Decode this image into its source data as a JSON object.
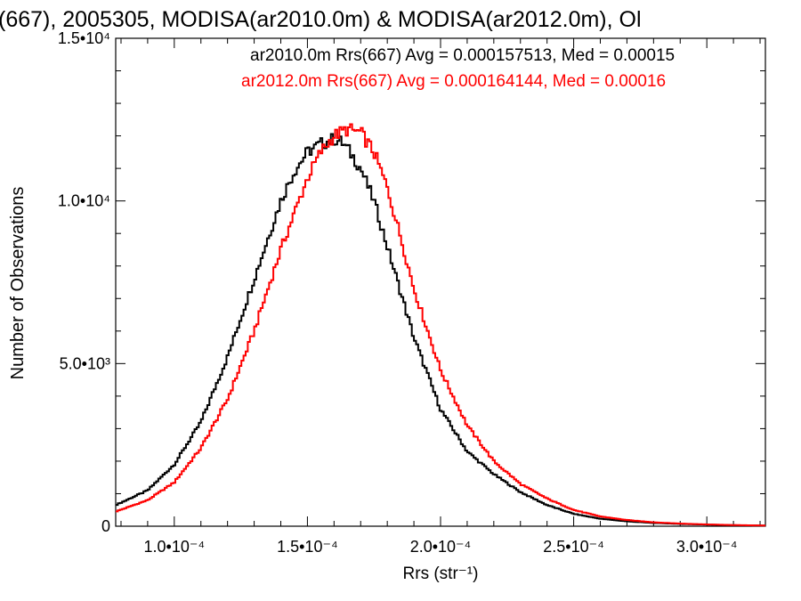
{
  "chart_data": {
    "type": "line",
    "title": "(667), 2005305, MODISA(ar2010.0m) & MODISA(ar2012.0m), Ol",
    "xlabel": "Rrs (str⁻¹)",
    "ylabel": "Number of Observations",
    "xlim": [
      7.8e-05,
      0.000322
    ],
    "ylim": [
      0,
      15000
    ],
    "x_ticks": [
      {
        "value": 0.0001,
        "label": "1.0•10⁻⁴"
      },
      {
        "value": 0.00015,
        "label": "1.5•10⁻⁴"
      },
      {
        "value": 0.0002,
        "label": "2.0•10⁻⁴"
      },
      {
        "value": 0.00025,
        "label": "2.5•10⁻⁴"
      },
      {
        "value": 0.0003,
        "label": "3.0•10⁻⁴"
      }
    ],
    "y_ticks": [
      {
        "value": 0,
        "label": "0"
      },
      {
        "value": 5000,
        "label": "5.0•10³"
      },
      {
        "value": 10000,
        "label": "1.0•10⁴"
      },
      {
        "value": 15000,
        "label": "1.5•10⁴"
      }
    ],
    "grid": false,
    "legend_position": "top-right",
    "series": [
      {
        "name": "ar2010.0m Rrs(667)",
        "color": "#000000",
        "legend_text": "ar2010.0m Rrs(667) Avg = 0.000157513, Med = 0.00015",
        "x": [
          7.8e-05,
          9e-05,
          0.0001,
          0.00011,
          0.00012,
          0.00013,
          0.00014,
          0.000145,
          0.00015,
          0.000155,
          0.00016,
          0.000163,
          0.000166,
          0.00017,
          0.000175,
          0.00018,
          0.00019,
          0.0002,
          0.00021,
          0.00022,
          0.00023,
          0.00024,
          0.00025,
          0.00026,
          0.00027,
          0.00028,
          0.00029,
          0.0003,
          0.00031,
          0.000322
        ],
        "values": [
          650,
          1100,
          1900,
          3200,
          5200,
          7600,
          10000,
          10900,
          11500,
          11750,
          11900,
          11800,
          11500,
          11000,
          10000,
          8600,
          5800,
          3600,
          2300,
          1600,
          1050,
          650,
          380,
          230,
          150,
          100,
          70,
          50,
          30,
          20
        ]
      },
      {
        "name": "ar2012.0m Rrs(667)",
        "color": "#ff0000",
        "legend_text": "ar2012.0m Rrs(667) Avg = 0.000164144, Med = 0.00016",
        "x": [
          7.8e-05,
          9e-05,
          0.0001,
          0.00011,
          0.00012,
          0.00013,
          0.00014,
          0.00015,
          0.000155,
          0.00016,
          0.000165,
          0.00017,
          0.000175,
          0.00018,
          0.000185,
          0.00019,
          0.0002,
          0.00021,
          0.00022,
          0.00023,
          0.00024,
          0.00025,
          0.00026,
          0.00027,
          0.00028,
          0.00029,
          0.0003,
          0.00031,
          0.000322
        ],
        "values": [
          450,
          800,
          1350,
          2400,
          3900,
          6000,
          8500,
          10700,
          11500,
          12000,
          12200,
          12100,
          11500,
          10400,
          8900,
          7300,
          4800,
          3100,
          2000,
          1300,
          850,
          500,
          300,
          190,
          120,
          80,
          55,
          35,
          20
        ]
      }
    ]
  }
}
